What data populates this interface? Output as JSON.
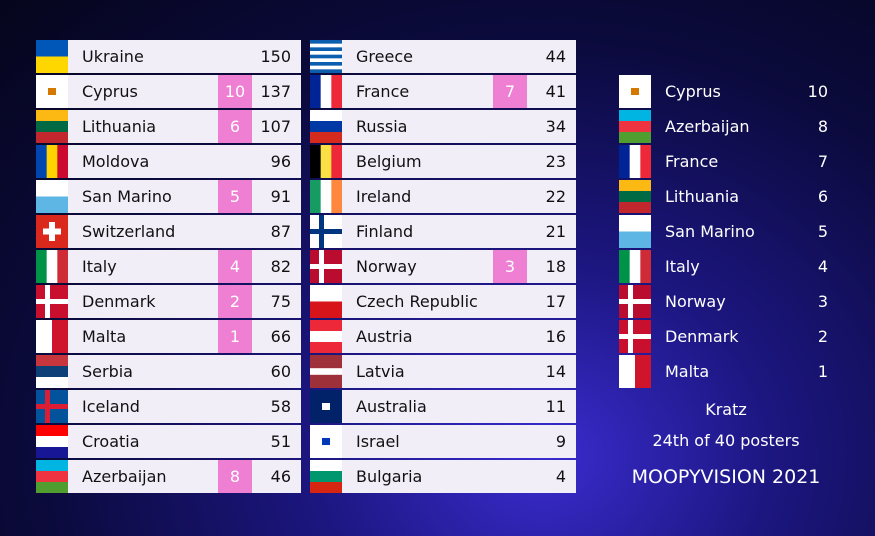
{
  "scoreboard": {
    "columns": [
      {
        "rows": [
          {
            "country": "Ukraine",
            "total": 150
          },
          {
            "country": "Cyprus",
            "points": 10,
            "total": 137
          },
          {
            "country": "Lithuania",
            "points": 6,
            "total": 107
          },
          {
            "country": "Moldova",
            "total": 96
          },
          {
            "country": "San Marino",
            "points": 5,
            "total": 91
          },
          {
            "country": "Switzerland",
            "total": 87
          },
          {
            "country": "Italy",
            "points": 4,
            "total": 82
          },
          {
            "country": "Denmark",
            "points": 2,
            "total": 75
          },
          {
            "country": "Malta",
            "points": 1,
            "total": 66
          },
          {
            "country": "Serbia",
            "total": 60
          },
          {
            "country": "Iceland",
            "total": 58
          },
          {
            "country": "Croatia",
            "total": 51
          },
          {
            "country": "Azerbaijan",
            "points": 8,
            "total": 46
          }
        ]
      },
      {
        "rows": [
          {
            "country": "Greece",
            "total": 44
          },
          {
            "country": "France",
            "points": 7,
            "total": 41
          },
          {
            "country": "Russia",
            "total": 34
          },
          {
            "country": "Belgium",
            "total": 23
          },
          {
            "country": "Ireland",
            "total": 22
          },
          {
            "country": "Finland",
            "total": 21
          },
          {
            "country": "Norway",
            "points": 3,
            "total": 18
          },
          {
            "country": "Czech Republic",
            "total": 17
          },
          {
            "country": "Austria",
            "total": 16
          },
          {
            "country": "Latvia",
            "total": 14
          },
          {
            "country": "Australia",
            "total": 11
          },
          {
            "country": "Israel",
            "total": 9
          },
          {
            "country": "Bulgaria",
            "total": 4
          }
        ]
      }
    ]
  },
  "jury": {
    "rows": [
      {
        "country": "Cyprus",
        "points": 10
      },
      {
        "country": "Azerbaijan",
        "points": 8
      },
      {
        "country": "France",
        "points": 7
      },
      {
        "country": "Lithuania",
        "points": 6
      },
      {
        "country": "San Marino",
        "points": 5
      },
      {
        "country": "Italy",
        "points": 4
      },
      {
        "country": "Norway",
        "points": 3
      },
      {
        "country": "Denmark",
        "points": 2
      },
      {
        "country": "Malta",
        "points": 1
      }
    ],
    "voter": "Kratz",
    "rank": "24th of 40 posters",
    "footer": "MOOPYVISION 2021"
  }
}
